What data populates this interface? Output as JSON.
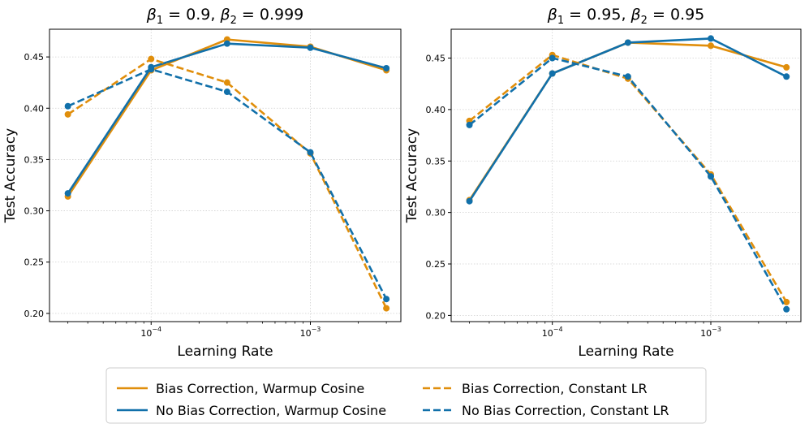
{
  "colors": {
    "bias": "#E08E0B",
    "nobias": "#1170AA"
  },
  "chart_data": [
    {
      "type": "line",
      "title_parts": [
        "β",
        "1",
        " = 0.9, ",
        "β",
        "2",
        " = 0.999"
      ],
      "xlabel": "Learning Rate",
      "ylabel": "Test Accuracy",
      "xscale": "log",
      "xlim": [
        2.3e-05,
        0.0037
      ],
      "ylim": [
        0.192,
        0.477
      ],
      "x": [
        3e-05,
        0.0001,
        0.0003,
        0.001,
        0.003
      ],
      "yticks": [
        0.2,
        0.25,
        0.3,
        0.35,
        0.4,
        0.45
      ],
      "ytick_labels": [
        "0.20",
        "0.25",
        "0.30",
        "0.35",
        "0.40",
        "0.45"
      ],
      "xticks": [
        {
          "value": 0.0001,
          "base": "10",
          "exp": "−4"
        },
        {
          "value": 0.001,
          "base": "10",
          "exp": "−3"
        }
      ],
      "grid": true,
      "series": [
        {
          "name": "Bias Correction, Warmup Cosine",
          "color_key": "bias",
          "dashed": false,
          "values": [
            0.314,
            0.437,
            0.467,
            0.46,
            0.437
          ]
        },
        {
          "name": "No Bias Correction, Warmup Cosine",
          "color_key": "nobias",
          "dashed": false,
          "values": [
            0.317,
            0.44,
            0.463,
            0.459,
            0.439
          ]
        },
        {
          "name": "Bias Correction, Constant LR",
          "color_key": "bias",
          "dashed": true,
          "values": [
            0.394,
            0.448,
            0.425,
            0.356,
            0.205
          ]
        },
        {
          "name": "No Bias Correction, Constant LR",
          "color_key": "nobias",
          "dashed": true,
          "values": [
            0.402,
            0.438,
            0.416,
            0.357,
            0.214
          ]
        }
      ]
    },
    {
      "type": "line",
      "title_parts": [
        "β",
        "1",
        " = 0.95, ",
        "β",
        "2",
        " = 0.95"
      ],
      "xlabel": "Learning Rate",
      "ylabel": "Test Accuracy",
      "xscale": "log",
      "xlim": [
        2.3e-05,
        0.0037
      ],
      "ylim": [
        0.194,
        0.478
      ],
      "x": [
        3e-05,
        0.0001,
        0.0003,
        0.001,
        0.003
      ],
      "yticks": [
        0.2,
        0.25,
        0.3,
        0.35,
        0.4,
        0.45
      ],
      "ytick_labels": [
        "0.20",
        "0.25",
        "0.30",
        "0.35",
        "0.40",
        "0.45"
      ],
      "xticks": [
        {
          "value": 0.0001,
          "base": "10",
          "exp": "−4"
        },
        {
          "value": 0.001,
          "base": "10",
          "exp": "−3"
        }
      ],
      "grid": true,
      "series": [
        {
          "name": "Bias Correction, Warmup Cosine",
          "color_key": "bias",
          "dashed": false,
          "values": [
            0.312,
            0.435,
            0.465,
            0.462,
            0.441
          ]
        },
        {
          "name": "No Bias Correction, Warmup Cosine",
          "color_key": "nobias",
          "dashed": false,
          "values": [
            0.311,
            0.435,
            0.465,
            0.469,
            0.432
          ]
        },
        {
          "name": "Bias Correction, Constant LR",
          "color_key": "bias",
          "dashed": true,
          "values": [
            0.389,
            0.453,
            0.43,
            0.337,
            0.213
          ]
        },
        {
          "name": "No Bias Correction, Constant LR",
          "color_key": "nobias",
          "dashed": true,
          "values": [
            0.385,
            0.45,
            0.432,
            0.335,
            0.206
          ]
        }
      ]
    }
  ],
  "legend": {
    "placement": "bottom-center",
    "items": [
      {
        "label": "Bias Correction, Warmup Cosine",
        "color_key": "bias",
        "dashed": false
      },
      {
        "label": "No Bias Correction, Warmup Cosine",
        "color_key": "nobias",
        "dashed": false
      },
      {
        "label": "Bias Correction, Constant LR",
        "color_key": "bias",
        "dashed": true
      },
      {
        "label": "No Bias Correction, Constant LR",
        "color_key": "nobias",
        "dashed": true
      }
    ]
  }
}
